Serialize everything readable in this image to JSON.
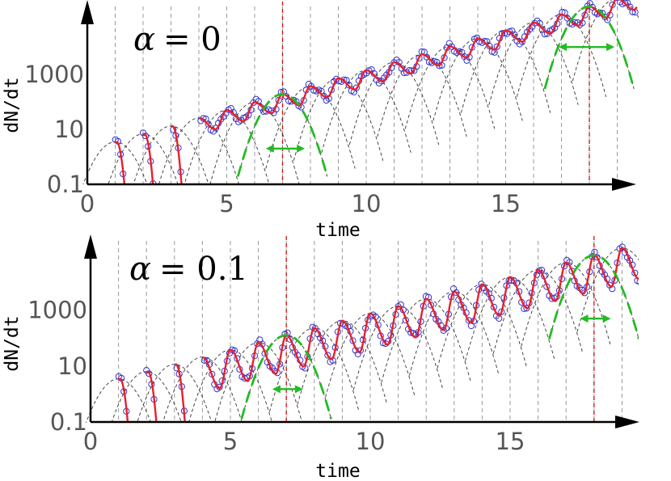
{
  "chart_data": [
    {
      "type": "line",
      "annotation": {
        "symbol": "α",
        "text": "= 0"
      },
      "xlabel": "time",
      "ylabel": "dN/dt",
      "xlim": [
        0,
        19.7
      ],
      "ylim": [
        0.1,
        300000
      ],
      "yscale": "log",
      "xticks": [
        0,
        5,
        10,
        15
      ],
      "xtick_labels": [
        "0",
        "5",
        "10",
        "15"
      ],
      "yticks": [
        0.1,
        10,
        1000
      ],
      "ytick_labels": [
        "0.1",
        "10",
        "1000"
      ],
      "grid_x": [
        1,
        2,
        3,
        4,
        5,
        6,
        7,
        8,
        9,
        10,
        11,
        12,
        13,
        14,
        15,
        16,
        17,
        18,
        19
      ],
      "highlight_x": [
        7,
        18
      ],
      "trend": {
        "start_peak": 3.5,
        "growth_rate": 0.29,
        "trough_ratio": 0.3,
        "rise_fraction": 0.6
      },
      "marker_spacing": 0.09,
      "parabolas": {
        "height": 3.0,
        "half_width": 1.6,
        "green": [
          {
            "center": 7,
            "arrow_x": [
              6.4,
              7.8
            ],
            "arrow_y": 2.0
          },
          {
            "center": 18,
            "arrow_x": [
              16.9,
              18.9
            ],
            "arrow_y": 10000
          }
        ]
      },
      "colors": {
        "fit": "#e8202c",
        "markers": "#3333cc",
        "grid": "#999999",
        "highlight": "#cc1111",
        "parabola": "#333333",
        "green": "#22bb22"
      }
    },
    {
      "type": "line",
      "annotation": {
        "symbol": "α",
        "text": "= 0.1"
      },
      "xlabel": "time",
      "ylabel": "dN/dt",
      "xlim": [
        0,
        19.7
      ],
      "ylim": [
        0.1,
        300000
      ],
      "yscale": "log",
      "xticks": [
        0,
        5,
        10,
        15
      ],
      "xtick_labels": [
        "0",
        "5",
        "10",
        "15"
      ],
      "yticks": [
        0.1,
        10,
        1000
      ],
      "ytick_labels": [
        "0.1",
        "10",
        "1000"
      ],
      "grid_x": [
        1,
        2,
        3,
        4,
        5,
        6,
        7,
        8,
        9,
        10,
        11,
        12,
        13,
        14,
        15,
        16,
        17,
        18,
        19
      ],
      "highlight_x": [
        7,
        18
      ],
      "trend": {
        "start_peak": 3.5,
        "growth_rate": 0.26,
        "trough_ratio": 0.06,
        "rise_fraction": 0.62
      },
      "marker_spacing": 0.09,
      "parabolas": {
        "height": 3.0,
        "half_width": 1.6,
        "green": [
          {
            "center": 7,
            "arrow_x": [
              6.5,
              7.6
            ],
            "arrow_y": 1.5
          },
          {
            "center": 18,
            "arrow_x": [
              17.5,
              18.6
            ],
            "arrow_y": 500
          }
        ]
      },
      "colors": {
        "fit": "#e8202c",
        "markers": "#3333cc",
        "grid": "#999999",
        "highlight": "#cc1111",
        "parabola": "#333333",
        "green": "#22bb22"
      }
    }
  ]
}
